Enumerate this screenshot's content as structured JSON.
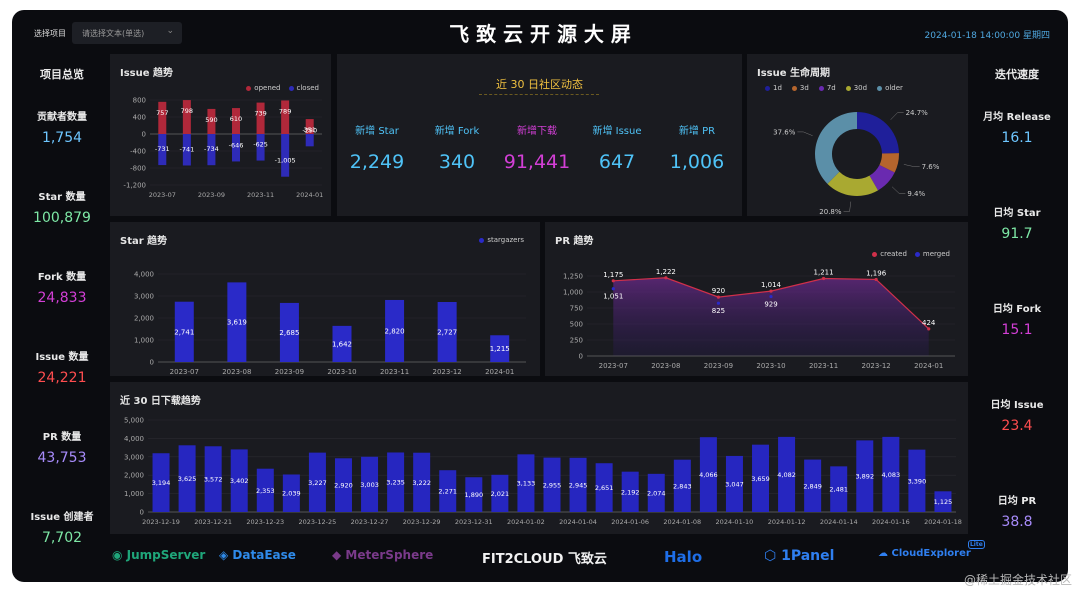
{
  "header": {
    "select_label": "选择项目",
    "select_placeholder": "请选择文本(单选)",
    "title": "飞 致 云 开 源 大 屏",
    "datetime": "2024-01-18 14:00:00 星期四"
  },
  "left": {
    "title": "项目总览",
    "items": [
      {
        "label": "贡献者数量",
        "value": "1,754",
        "color": "#6ec6ff"
      },
      {
        "label": "Star 数量",
        "value": "100,879",
        "color": "#7ee8a6"
      },
      {
        "label": "Fork 数量",
        "value": "24,833",
        "color": "#d33fd6"
      },
      {
        "label": "Issue 数量",
        "value": "24,221",
        "color": "#ff4d4f"
      },
      {
        "label": "PR 数量",
        "value": "43,753",
        "color": "#a78bfa"
      },
      {
        "label": "Issue 创建者",
        "value": "7,702",
        "color": "#7ee8a6"
      }
    ]
  },
  "right": {
    "title": "迭代速度",
    "items": [
      {
        "label": "月均 Release",
        "value": "16.1",
        "color": "#6ec6ff"
      },
      {
        "label": "日均 Star",
        "value": "91.7",
        "color": "#7ee8a6"
      },
      {
        "label": "日均 Fork",
        "value": "15.1",
        "color": "#d33fd6"
      },
      {
        "label": "日均 Issue",
        "value": "23.4",
        "color": "#ff4d4f"
      },
      {
        "label": "日均 PR",
        "value": "38.8",
        "color": "#a78bfa"
      }
    ]
  },
  "community": {
    "title": "近 30 日社区动态",
    "metrics": [
      {
        "label": "新增 Star",
        "value": "2,249",
        "color": "#4fc3f7"
      },
      {
        "label": "新增 Fork",
        "value": "340",
        "color": "#4fc3f7"
      },
      {
        "label": "新增下载",
        "value": "91,441",
        "color": "#d33fd6"
      },
      {
        "label": "新增 Issue",
        "value": "647",
        "color": "#4fc3f7"
      },
      {
        "label": "新增 PR",
        "value": "1,006",
        "color": "#4fc3f7"
      }
    ]
  },
  "logos": [
    "JumpServer",
    "DataEase",
    "MeterSphere",
    "FIT2CLOUD 飞致云",
    "Halo",
    "1Panel",
    "CloudExplorer",
    "Lite"
  ],
  "watermark": "@稀土掘金技术社区",
  "chart_data": [
    {
      "id": "issue",
      "type": "bar",
      "title": "Issue 趋势",
      "categories": [
        "2023-07",
        "2023-08",
        "2023-09",
        "2023-10",
        "2023-11",
        "2023-12",
        "2024-01"
      ],
      "tick_labels": [
        "2023-07",
        "2023-09",
        "2023-11",
        "2024-01"
      ],
      "series": [
        {
          "name": "opened",
          "color": "#b0283a",
          "values": [
            757,
            798,
            590,
            610,
            739,
            789,
            351
          ]
        },
        {
          "name": "closed",
          "color": "#2e2bb8",
          "values": [
            -731,
            -741,
            -734,
            -646,
            -625,
            -1005,
            -290
          ]
        }
      ],
      "yticks": [
        800,
        400,
        0,
        -400,
        -800,
        -1200
      ],
      "ytick_labels": [
        "800",
        "400",
        "0",
        "-400",
        "-800",
        "-1,200"
      ],
      "ylim": [
        -1200,
        800
      ]
    },
    {
      "id": "lifecycle",
      "type": "pie",
      "title": "Issue 生命周期",
      "labels": [
        "1d",
        "3d",
        "7d",
        "30d",
        "older"
      ],
      "colors": [
        "#1f1f9a",
        "#b5652d",
        "#6a2ab0",
        "#a9a931",
        "#5b8fa8"
      ],
      "values": [
        24.7,
        7.6,
        9.4,
        20.8,
        37.6
      ],
      "value_labels": [
        "24.7%",
        "7.6%",
        "9.4%",
        "20.8%",
        "37.6%"
      ]
    },
    {
      "id": "star",
      "type": "bar",
      "title": "Star 趋势",
      "categories": [
        "2023-07",
        "2023-08",
        "2023-09",
        "2023-10",
        "2023-11",
        "2023-12",
        "2024-01"
      ],
      "series": [
        {
          "name": "stargazers",
          "color": "#2a2ac8",
          "values": [
            2741,
            3619,
            2685,
            1642,
            2820,
            2727,
            1215
          ]
        }
      ],
      "yticks": [
        0,
        1000,
        2000,
        3000,
        4000
      ],
      "ytick_labels": [
        "0",
        "1,000",
        "2,000",
        "3,000",
        "4,000"
      ],
      "ylim": [
        0,
        4000
      ]
    },
    {
      "id": "pr",
      "type": "area",
      "title": "PR 趋势",
      "categories": [
        "2023-07",
        "2023-08",
        "2023-09",
        "2023-10",
        "2023-11",
        "2023-12",
        "2024-01"
      ],
      "series": [
        {
          "name": "created",
          "color": "#d0304a",
          "values": [
            1175,
            1222,
            920,
            1014,
            1211,
            1196,
            424
          ]
        },
        {
          "name": "merged",
          "color": "#2a2ac8",
          "values": [
            1051,
            null,
            825,
            929,
            null,
            null,
            null
          ]
        }
      ],
      "yticks": [
        0,
        250,
        500,
        750,
        1000,
        1250
      ],
      "ytick_labels": [
        "0",
        "250",
        "500",
        "750",
        "1,000",
        "1,250"
      ],
      "ylim": [
        0,
        1250
      ]
    },
    {
      "id": "download",
      "type": "bar",
      "title": "近 30 日下载趋势",
      "categories": [
        "2023-12-19",
        "2023-12-20",
        "2023-12-21",
        "2023-12-22",
        "2023-12-23",
        "2023-12-24",
        "2023-12-25",
        "2023-12-26",
        "2023-12-27",
        "2023-12-28",
        "2023-12-29",
        "2023-12-30",
        "2023-12-31",
        "2024-01-01",
        "2024-01-02",
        "2024-01-03",
        "2024-01-04",
        "2024-01-05",
        "2024-01-06",
        "2024-01-07",
        "2024-01-08",
        "2024-01-09",
        "2024-01-10",
        "2024-01-11",
        "2024-01-12",
        "2024-01-13",
        "2024-01-14",
        "2024-01-15",
        "2024-01-16",
        "2024-01-17",
        "2024-01-18"
      ],
      "tick_labels": [
        "2023-12-19",
        "2023-12-21",
        "2023-12-23",
        "2023-12-25",
        "2023-12-27",
        "2023-12-29",
        "2023-12-31",
        "2024-01-02",
        "2024-01-04",
        "2024-01-06",
        "2024-01-08",
        "2024-01-10",
        "2024-01-12",
        "2024-01-14",
        "2024-01-16",
        "2024-01-18"
      ],
      "series": [
        {
          "name": "downloads",
          "color": "#2626c0",
          "values": [
            3194,
            3625,
            3572,
            3402,
            2353,
            2039,
            3227,
            2920,
            3003,
            3235,
            3222,
            2271,
            1890,
            2021,
            3133,
            2955,
            2945,
            2651,
            2192,
            2074,
            2843,
            4066,
            3047,
            3659,
            4082,
            2849,
            2481,
            3892,
            4083,
            3390,
            1125
          ]
        }
      ],
      "yticks": [
        0,
        1000,
        2000,
        3000,
        4000,
        5000
      ],
      "ytick_labels": [
        "0",
        "1,000",
        "2,000",
        "3,000",
        "4,000",
        "5,000"
      ],
      "ylim": [
        0,
        5000
      ]
    }
  ]
}
